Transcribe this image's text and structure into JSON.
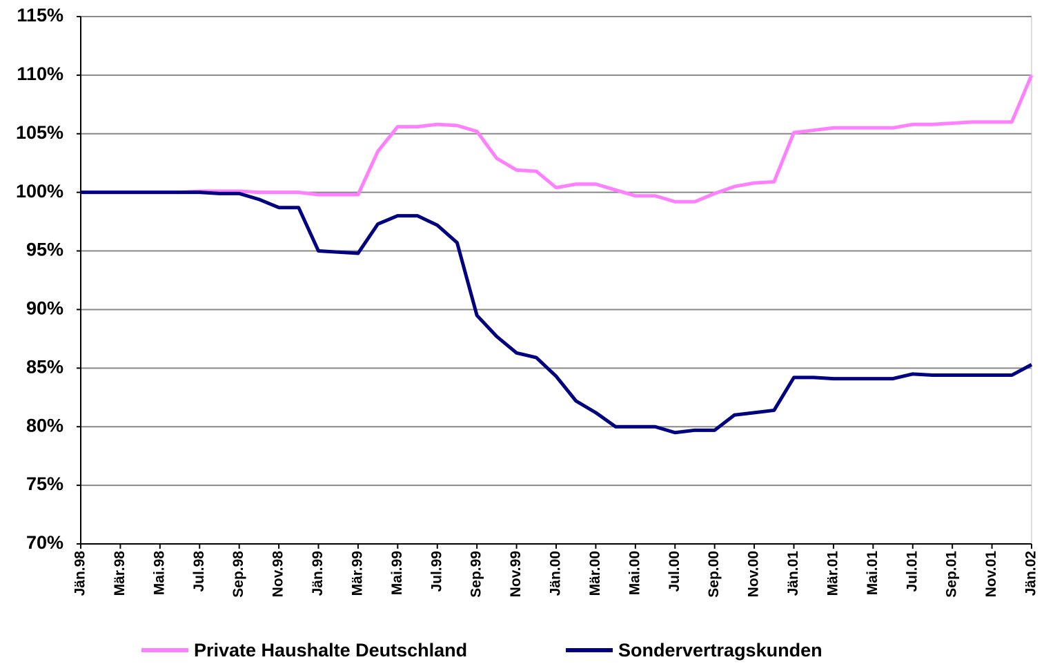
{
  "chart_data": {
    "type": "line",
    "categories": [
      "Jän.98",
      null,
      "Mär.98",
      null,
      "Mai.98",
      null,
      "Jul.98",
      null,
      "Sep.98",
      null,
      "Nov.98",
      null,
      "Jän.99",
      null,
      "Mär.99",
      null,
      "Mai.99",
      null,
      "Jul.99",
      null,
      "Sep.99",
      null,
      "Nov.99",
      null,
      "Jän.00",
      null,
      "Mär.00",
      null,
      "Mai.00",
      null,
      "Jul.00",
      null,
      "Sep.00",
      null,
      "Nov.00",
      null,
      "Jän.01",
      null,
      "Mär.01",
      null,
      "Mai.01",
      null,
      "Jul.01",
      null,
      "Sep.01",
      null,
      "Nov.01",
      null,
      "Jän.02"
    ],
    "series": [
      {
        "name": "Private Haushalte Deutschland",
        "color": "#ff80ff",
        "values": [
          100,
          100,
          100,
          100,
          100,
          100,
          100.1,
          100.1,
          100.1,
          100,
          100,
          100,
          99.8,
          99.8,
          99.8,
          103.5,
          105.6,
          105.6,
          105.8,
          105.7,
          105.2,
          102.9,
          101.9,
          101.8,
          100.4,
          100.7,
          100.7,
          100.2,
          99.7,
          99.7,
          99.2,
          99.2,
          99.9,
          100.5,
          100.8,
          100.9,
          105.1,
          105.3,
          105.5,
          105.5,
          105.5,
          105.5,
          105.8,
          105.8,
          105.9,
          106,
          106,
          106,
          110
        ]
      },
      {
        "name": "Sondervertragskunden",
        "color": "#000080",
        "values": [
          100,
          100,
          100,
          100,
          100,
          100,
          100,
          99.9,
          99.9,
          99.4,
          98.7,
          98.7,
          95,
          94.9,
          94.8,
          97.3,
          98,
          98,
          97.2,
          95.7,
          89.5,
          87.7,
          86.3,
          85.9,
          84.3,
          82.2,
          81.2,
          80,
          80,
          80,
          79.5,
          79.7,
          79.7,
          81,
          81.2,
          81.4,
          84.2,
          84.2,
          84.1,
          84.1,
          84.1,
          84.1,
          84.5,
          84.4,
          84.4,
          84.4,
          84.4,
          84.4,
          85.3
        ]
      }
    ],
    "ylim": [
      70,
      115
    ],
    "yticks": [
      {
        "value": 70,
        "label": "70%"
      },
      {
        "value": 75,
        "label": "75%"
      },
      {
        "value": 80,
        "label": "80%"
      },
      {
        "value": 85,
        "label": "85%"
      },
      {
        "value": 90,
        "label": "90%"
      },
      {
        "value": 95,
        "label": "95%"
      },
      {
        "value": 100,
        "label": "100%"
      },
      {
        "value": 105,
        "label": "105%"
      },
      {
        "value": 110,
        "label": "110%"
      },
      {
        "value": 115,
        "label": "115%"
      }
    ],
    "grid": true,
    "legend": "bottom"
  }
}
